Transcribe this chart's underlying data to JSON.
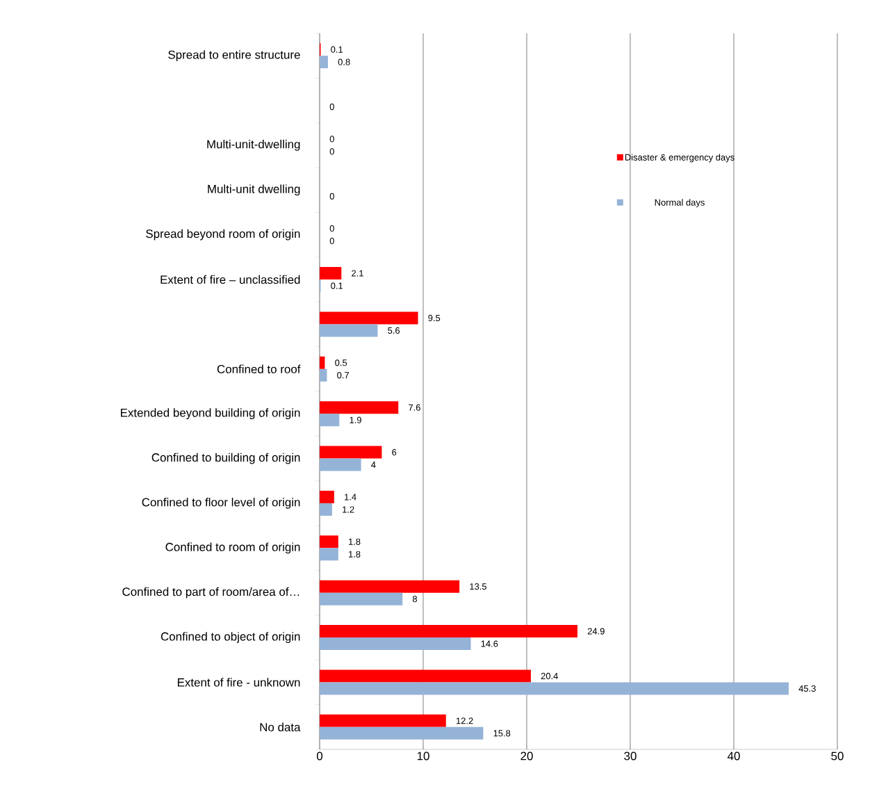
{
  "chart_data": {
    "type": "bar",
    "orientation": "horizontal",
    "categories": [
      "Spread to entire structure",
      null,
      "Multi-unit-dwelling",
      "Multi-unit dwelling",
      "Spread beyond room of origin",
      "Extent of fire – unclassified",
      null,
      "Confined to roof",
      "Extended beyond building of origin",
      "Confined to building of origin",
      "Confined to floor level of origin",
      "Confined to room of origin",
      "Confined to part of room/area of…",
      "Confined to object of origin",
      "Extent of fire - unknown",
      "No data"
    ],
    "series": [
      {
        "name": "Disaster & emergency days",
        "color": "#ff0000",
        "values": [
          0.1,
          null,
          0,
          null,
          0,
          2.1,
          9.5,
          0.5,
          7.6,
          6,
          1.4,
          1.8,
          13.5,
          24.9,
          20.4,
          12.2
        ]
      },
      {
        "name": "Normal days",
        "color": "#95b3d7",
        "values": [
          0.8,
          0,
          0,
          0,
          0,
          0.1,
          5.6,
          0.7,
          1.9,
          4,
          1.2,
          1.8,
          8,
          14.6,
          45.3,
          15.8
        ]
      }
    ],
    "xlim": [
      0,
      50
    ],
    "xticks": [
      0,
      10,
      20,
      30,
      40,
      50
    ],
    "grid": "x",
    "legend": "top right",
    "data_labels": true
  }
}
